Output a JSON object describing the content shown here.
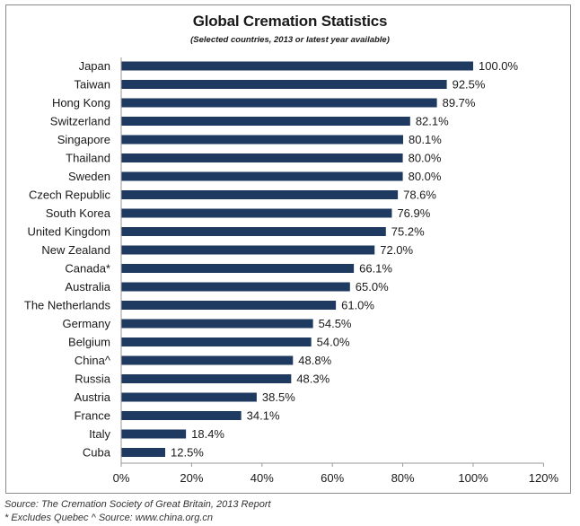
{
  "chart_data": {
    "type": "bar",
    "orientation": "horizontal",
    "title": "Global Cremation Statistics",
    "subtitle": "(Selected countries, 2013 or latest year available)",
    "categories": [
      "Japan",
      "Taiwan",
      "Hong Kong",
      "Switzerland",
      "Singapore",
      "Thailand",
      "Sweden",
      "Czech Republic",
      "South Korea",
      "United Kingdom",
      "New Zealand",
      "Canada*",
      "Australia",
      "The Netherlands",
      "Germany",
      "Belgium",
      "China^",
      "Russia",
      "Austria",
      "France",
      "Italy",
      "Cuba"
    ],
    "values": [
      100.0,
      92.5,
      89.7,
      82.1,
      80.1,
      80.0,
      80.0,
      78.6,
      76.9,
      75.2,
      72.0,
      66.1,
      65.0,
      61.0,
      54.5,
      54.0,
      48.8,
      48.3,
      38.5,
      34.1,
      18.4,
      12.5
    ],
    "value_labels": [
      "100.0%",
      "92.5%",
      "89.7%",
      "82.1%",
      "80.1%",
      "80.0%",
      "80.0%",
      "78.6%",
      "76.9%",
      "75.2%",
      "72.0%",
      "66.1%",
      "65.0%",
      "61.0%",
      "54.5%",
      "54.0%",
      "48.8%",
      "48.3%",
      "38.5%",
      "34.1%",
      "18.4%",
      "12.5%"
    ],
    "xlim": [
      0,
      120
    ],
    "xticks": [
      "0%",
      "20%",
      "40%",
      "60%",
      "80%",
      "100%",
      "120%"
    ],
    "xlabel": "",
    "ylabel": "",
    "grid": false,
    "bar_color": "#1f3a60"
  },
  "footer": {
    "source": "Source: The Cremation Society of Great Britain, 2013 Report",
    "notes": "* Excludes Quebec     ^ Source: www.china.org.cn"
  }
}
